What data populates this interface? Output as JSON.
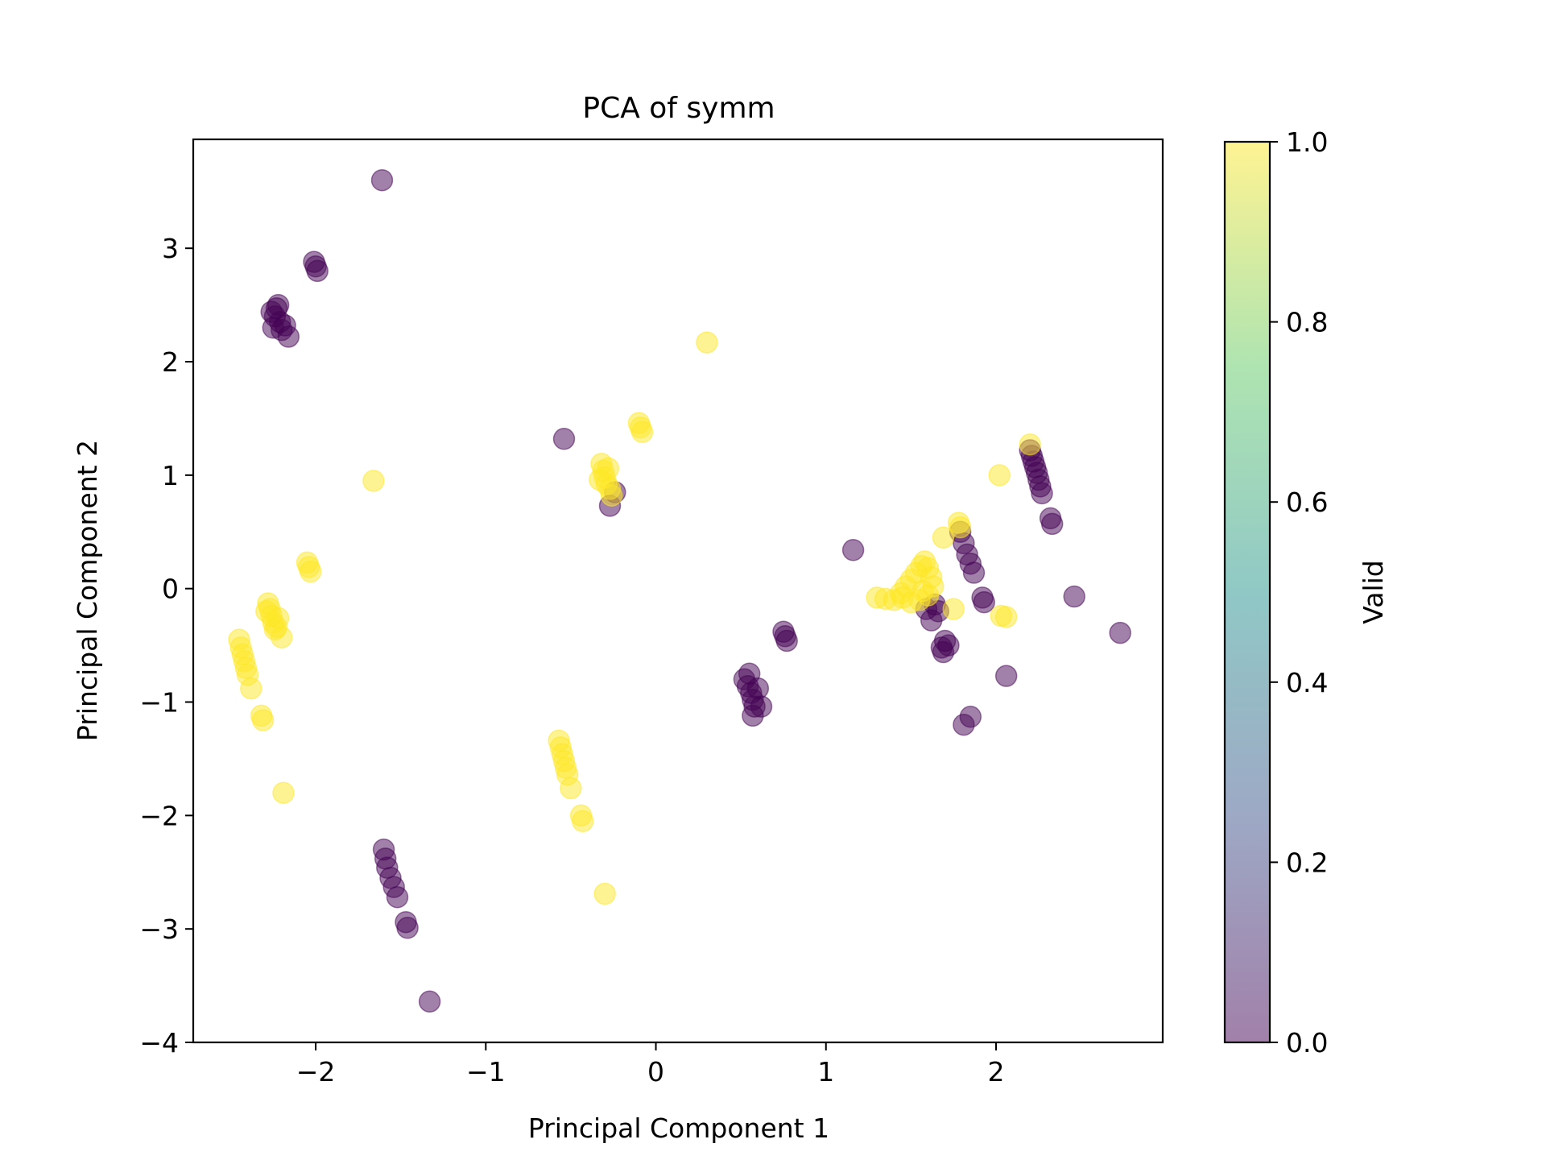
{
  "chart_data": {
    "type": "scatter",
    "title": "PCA of symm",
    "xlabel": "Principal Component 1",
    "ylabel": "Principal Component 2",
    "xlim": [
      -2.72,
      2.98
    ],
    "ylim": [
      -4.0,
      3.96
    ],
    "xticks": [
      -2,
      -1,
      0,
      1,
      2
    ],
    "xtick_labels": [
      "−2",
      "−1",
      "0",
      "1",
      "2"
    ],
    "yticks": [
      -4,
      -3,
      -2,
      -1,
      0,
      1,
      2,
      3
    ],
    "ytick_labels": [
      "−4",
      "−3",
      "−2",
      "−1",
      "0",
      "1",
      "2",
      "3"
    ],
    "grid": false,
    "colorbar": {
      "label": "Valid",
      "range": [
        0.0,
        1.0
      ],
      "ticks": [
        0.0,
        0.2,
        0.4,
        0.6,
        0.8,
        1.0
      ],
      "tick_labels": [
        "0.0",
        "0.2",
        "0.4",
        "0.6",
        "0.8",
        "1.0"
      ],
      "colormap": "viridis",
      "stops": [
        "#440154",
        "#3b528b",
        "#21918c",
        "#5ec962",
        "#fde725"
      ]
    },
    "marker_alpha": 0.5,
    "points": [
      [
        -1.61,
        3.6,
        0
      ],
      [
        -2.01,
        2.88,
        0
      ],
      [
        -2.0,
        2.84,
        0
      ],
      [
        -1.99,
        2.8,
        0
      ],
      [
        -2.26,
        2.44,
        0
      ],
      [
        -2.24,
        2.4,
        0
      ],
      [
        -2.22,
        2.5,
        0
      ],
      [
        -2.21,
        2.35,
        0
      ],
      [
        -2.25,
        2.3,
        0
      ],
      [
        -2.2,
        2.28,
        0
      ],
      [
        -2.18,
        2.32,
        0
      ],
      [
        -2.16,
        2.22,
        0
      ],
      [
        -2.23,
        2.47,
        0
      ],
      [
        -0.54,
        1.32,
        0
      ],
      [
        -0.27,
        0.73,
        0
      ],
      [
        -0.24,
        0.85,
        0
      ],
      [
        -1.6,
        -2.3,
        0
      ],
      [
        -1.59,
        -2.38,
        0
      ],
      [
        -1.58,
        -2.46,
        0
      ],
      [
        -1.56,
        -2.55,
        0
      ],
      [
        -1.54,
        -2.63,
        0
      ],
      [
        -1.52,
        -2.72,
        0
      ],
      [
        -1.47,
        -2.94,
        0
      ],
      [
        -1.46,
        -2.99,
        0
      ],
      [
        -1.33,
        -3.64,
        0
      ],
      [
        0.52,
        -0.8,
        0
      ],
      [
        0.54,
        -0.86,
        0
      ],
      [
        0.55,
        -0.75,
        0
      ],
      [
        0.56,
        -0.92,
        0
      ],
      [
        0.57,
        -0.98,
        0
      ],
      [
        0.58,
        -1.04,
        0
      ],
      [
        0.6,
        -0.88,
        0
      ],
      [
        0.62,
        -1.04,
        0
      ],
      [
        0.57,
        -1.12,
        0
      ],
      [
        0.75,
        -0.38,
        0
      ],
      [
        0.76,
        -0.42,
        0
      ],
      [
        0.77,
        -0.46,
        0
      ],
      [
        1.16,
        0.34,
        0
      ],
      [
        1.59,
        -0.18,
        0
      ],
      [
        1.62,
        -0.28,
        0
      ],
      [
        1.64,
        -0.14,
        0
      ],
      [
        1.66,
        -0.2,
        0
      ],
      [
        1.68,
        -0.52,
        0
      ],
      [
        1.7,
        -0.46,
        0
      ],
      [
        1.72,
        -0.5,
        0
      ],
      [
        1.69,
        -0.56,
        0
      ],
      [
        1.79,
        0.5,
        0
      ],
      [
        1.81,
        0.4,
        0
      ],
      [
        1.83,
        0.3,
        0
      ],
      [
        1.85,
        0.22,
        0
      ],
      [
        1.87,
        0.14,
        0
      ],
      [
        1.92,
        -0.08,
        0
      ],
      [
        1.93,
        -0.12,
        0
      ],
      [
        1.81,
        -1.2,
        0
      ],
      [
        1.85,
        -1.13,
        0
      ],
      [
        2.06,
        -0.77,
        0
      ],
      [
        2.2,
        1.22,
        0
      ],
      [
        2.21,
        1.17,
        0
      ],
      [
        2.22,
        1.12,
        0
      ],
      [
        2.23,
        1.07,
        0
      ],
      [
        2.24,
        1.02,
        0
      ],
      [
        2.25,
        0.96,
        0
      ],
      [
        2.26,
        0.9,
        0
      ],
      [
        2.27,
        0.84,
        0
      ],
      [
        2.32,
        0.62,
        0
      ],
      [
        2.33,
        0.57,
        0
      ],
      [
        2.46,
        -0.07,
        0
      ],
      [
        2.73,
        -0.39,
        0
      ],
      [
        0.3,
        2.17,
        1
      ],
      [
        -0.1,
        1.46,
        1
      ],
      [
        -0.09,
        1.42,
        1
      ],
      [
        -0.08,
        1.38,
        1
      ],
      [
        -0.32,
        1.1,
        1
      ],
      [
        -0.31,
        1.04,
        1
      ],
      [
        -0.3,
        0.98,
        1
      ],
      [
        -0.29,
        0.92,
        1
      ],
      [
        -0.33,
        0.96,
        1
      ],
      [
        -0.28,
        1.06,
        1
      ],
      [
        -0.27,
        0.88,
        1
      ],
      [
        -0.26,
        0.82,
        1
      ],
      [
        -1.66,
        0.95,
        1
      ],
      [
        -2.05,
        0.23,
        1
      ],
      [
        -2.04,
        0.19,
        1
      ],
      [
        -2.03,
        0.15,
        1
      ],
      [
        -2.28,
        -0.13,
        1
      ],
      [
        -2.27,
        -0.18,
        1
      ],
      [
        -2.26,
        -0.24,
        1
      ],
      [
        -2.25,
        -0.3,
        1
      ],
      [
        -2.24,
        -0.36,
        1
      ],
      [
        -2.22,
        -0.26,
        1
      ],
      [
        -2.2,
        -0.43,
        1
      ],
      [
        -2.29,
        -0.2,
        1
      ],
      [
        -2.23,
        -0.34,
        1
      ],
      [
        -2.45,
        -0.45,
        1
      ],
      [
        -2.44,
        -0.52,
        1
      ],
      [
        -2.43,
        -0.58,
        1
      ],
      [
        -2.42,
        -0.64,
        1
      ],
      [
        -2.41,
        -0.7,
        1
      ],
      [
        -2.4,
        -0.76,
        1
      ],
      [
        -2.38,
        -0.88,
        1
      ],
      [
        -2.32,
        -1.12,
        1
      ],
      [
        -2.31,
        -1.16,
        1
      ],
      [
        -2.19,
        -1.8,
        1
      ],
      [
        -0.57,
        -1.34,
        1
      ],
      [
        -0.56,
        -1.4,
        1
      ],
      [
        -0.55,
        -1.46,
        1
      ],
      [
        -0.54,
        -1.52,
        1
      ],
      [
        -0.53,
        -1.58,
        1
      ],
      [
        -0.52,
        -1.64,
        1
      ],
      [
        -0.5,
        -1.76,
        1
      ],
      [
        -0.44,
        -2.0,
        1
      ],
      [
        -0.43,
        -2.05,
        1
      ],
      [
        -0.3,
        -2.69,
        1
      ],
      [
        1.3,
        -0.08,
        1
      ],
      [
        1.35,
        -0.09,
        1
      ],
      [
        1.4,
        -0.1,
        1
      ],
      [
        1.44,
        -0.04,
        1
      ],
      [
        1.47,
        0.02,
        1
      ],
      [
        1.5,
        0.08,
        1
      ],
      [
        1.53,
        0.14,
        1
      ],
      [
        1.56,
        0.2,
        1
      ],
      [
        1.58,
        0.24,
        1
      ],
      [
        1.6,
        0.18,
        1
      ],
      [
        1.62,
        0.1,
        1
      ],
      [
        1.63,
        0.02,
        1
      ],
      [
        1.6,
        -0.06,
        1
      ],
      [
        1.55,
        -0.1,
        1
      ],
      [
        1.5,
        -0.12,
        1
      ],
      [
        1.45,
        -0.08,
        1
      ],
      [
        1.57,
        -0.02,
        1
      ],
      [
        1.69,
        0.45,
        1
      ],
      [
        1.78,
        0.58,
        1
      ],
      [
        1.79,
        0.54,
        1
      ],
      [
        1.75,
        -0.18,
        1
      ],
      [
        2.03,
        -0.24,
        1
      ],
      [
        2.06,
        -0.25,
        1
      ],
      [
        2.02,
        1.0,
        1
      ],
      [
        2.2,
        1.27,
        1
      ]
    ]
  }
}
